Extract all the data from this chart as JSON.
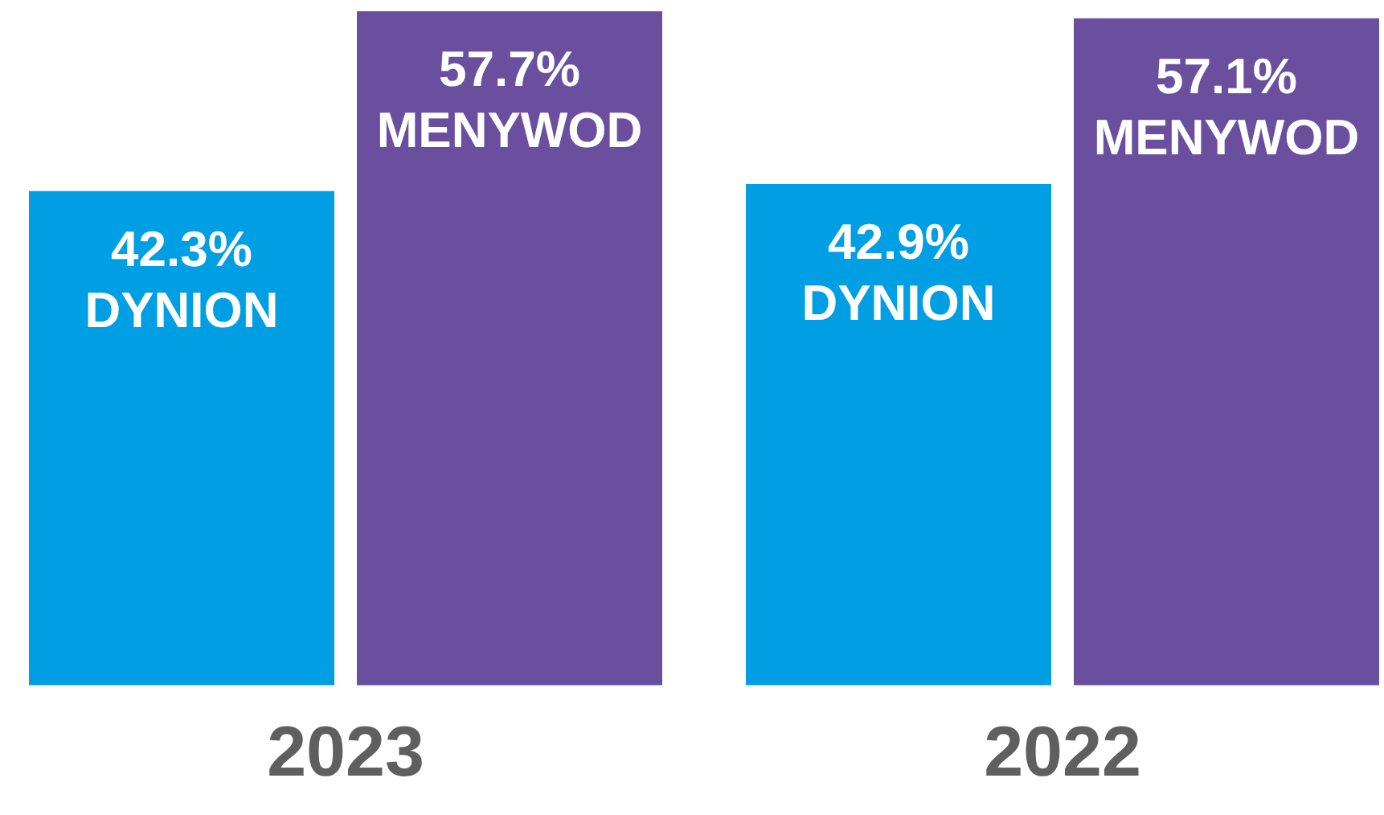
{
  "chart_data": {
    "type": "bar",
    "categories": [
      "2023",
      "2022"
    ],
    "series": [
      {
        "name": "DYNION",
        "color": "#009fe3",
        "values": [
          42.3,
          42.9
        ],
        "value_labels": [
          "42.3%",
          "42.9%"
        ]
      },
      {
        "name": "MENYWOD",
        "color": "#6a4f9f",
        "values": [
          57.7,
          57.1
        ],
        "value_labels": [
          "57.7%",
          "57.1%"
        ]
      }
    ],
    "ylim": [
      0,
      57.7
    ],
    "grid": false,
    "legend": false
  }
}
